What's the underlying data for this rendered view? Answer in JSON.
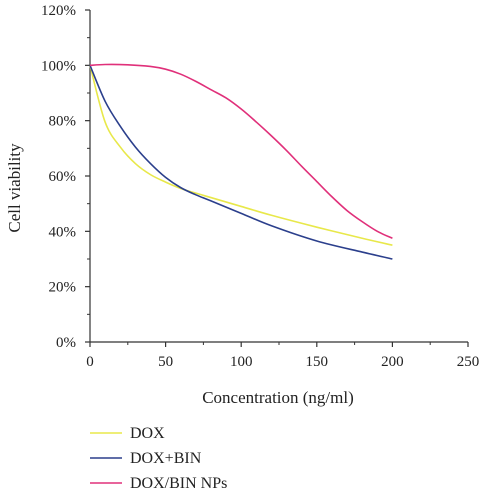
{
  "chart_data": {
    "type": "line",
    "title": "",
    "xlabel": "Concentration (ng/ml)",
    "ylabel": "Cell viability",
    "xlim": [
      0,
      250
    ],
    "ylim": [
      0,
      120
    ],
    "x_ticks": [
      0,
      50,
      100,
      150,
      200,
      250
    ],
    "x_tick_labels": [
      "0",
      "50",
      "100",
      "150",
      "200",
      "250"
    ],
    "y_ticks": [
      0,
      20,
      40,
      60,
      80,
      100,
      120
    ],
    "y_tick_labels": [
      "0%",
      "20%",
      "40%",
      "60%",
      "80%",
      "100%",
      "120%"
    ],
    "grid": false,
    "legend_position": "bottom-left",
    "series": [
      {
        "name": "DOX",
        "color": "#e8e84a",
        "x": [
          0,
          10,
          20,
          30,
          40,
          50,
          60,
          70,
          80,
          100,
          120,
          150,
          180,
          200
        ],
        "y": [
          100,
          79.5,
          70.5,
          64.5,
          60.5,
          57.8,
          55.5,
          53.8,
          52.2,
          49.0,
          45.8,
          41.5,
          37.5,
          35.0
        ]
      },
      {
        "name": "DOX+BIN",
        "color": "#2b3f8c",
        "x": [
          0,
          10,
          20,
          30,
          40,
          50,
          60,
          70,
          80,
          100,
          120,
          150,
          180,
          200
        ],
        "y": [
          100,
          87,
          78,
          70.5,
          64.5,
          59.5,
          55.8,
          53.2,
          51.0,
          46.5,
          42.0,
          36.5,
          32.5,
          30.0
        ]
      },
      {
        "name": "DOX/BIN NPs",
        "color": "#e0307a",
        "x": [
          0,
          10,
          25,
          40,
          50,
          60,
          70,
          80,
          90,
          100,
          110,
          120,
          130,
          140,
          150,
          160,
          170,
          180,
          190,
          200
        ],
        "y": [
          100,
          100.3,
          100.2,
          99.6,
          98.6,
          96.8,
          94.2,
          91.2,
          88.2,
          84.2,
          79.5,
          74.5,
          69.2,
          63.5,
          58.0,
          52.5,
          47.5,
          43.5,
          40.0,
          37.5
        ]
      }
    ]
  }
}
